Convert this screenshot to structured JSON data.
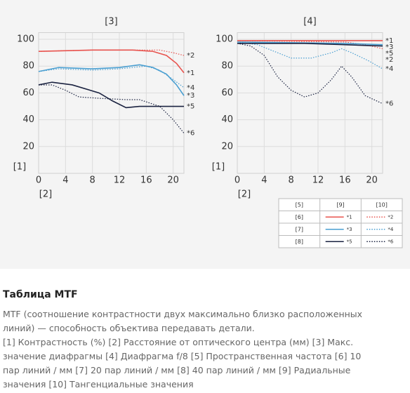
{
  "chart_data": [
    {
      "type": "line",
      "title": "[3]",
      "ylabel": "[1]",
      "xlabel": "[2]",
      "xlim": [
        0,
        21.6
      ],
      "ylim": [
        0,
        105
      ],
      "xticks": [
        0,
        4,
        8,
        12,
        16,
        20
      ],
      "yticks": [
        20,
        40,
        60,
        80,
        100
      ],
      "grid": true,
      "series": [
        {
          "name": "*1",
          "color": "#e8534e",
          "style": "solid",
          "x": [
            0,
            8,
            14,
            17,
            19,
            20.5,
            21.6
          ],
          "values": [
            91,
            92,
            92,
            91,
            88,
            82,
            75
          ]
        },
        {
          "name": "*2",
          "color": "#e8534e",
          "style": "dotted",
          "x": [
            0,
            8,
            14,
            16,
            18,
            20,
            21.6
          ],
          "values": [
            91,
            92,
            92,
            92,
            92,
            90,
            88
          ]
        },
        {
          "name": "*3",
          "color": "#4a9fd1",
          "style": "solid",
          "x": [
            0,
            3,
            8,
            12,
            15,
            17,
            19,
            20.5,
            21.6
          ],
          "values": [
            76,
            79,
            78,
            79,
            81,
            79,
            74,
            66,
            58
          ]
        },
        {
          "name": "*4",
          "color": "#4a9fd1",
          "style": "dotted",
          "x": [
            0,
            3,
            8,
            12,
            16,
            18,
            20,
            21.6
          ],
          "values": [
            76,
            78,
            77,
            78,
            80,
            77,
            70,
            64
          ]
        },
        {
          "name": "*5",
          "color": "#1a2240",
          "style": "solid",
          "x": [
            0,
            2,
            5,
            9,
            11,
            13,
            15,
            21.6
          ],
          "values": [
            66,
            68,
            66,
            60,
            54,
            49,
            50,
            50
          ]
        },
        {
          "name": "*6",
          "color": "#1a2240",
          "style": "dotted",
          "x": [
            0,
            2,
            4,
            6,
            9,
            13,
            15,
            18,
            20,
            21.6
          ],
          "values": [
            66,
            66,
            62,
            57,
            56,
            55,
            55,
            50,
            40,
            30
          ]
        }
      ]
    },
    {
      "type": "line",
      "title": "[4]",
      "ylabel": "[1]",
      "xlabel": "[2]",
      "xlim": [
        0,
        21.6
      ],
      "ylim": [
        0,
        105
      ],
      "xticks": [
        0,
        4,
        8,
        12,
        16,
        20
      ],
      "yticks": [
        20,
        40,
        60,
        80,
        100
      ],
      "grid": true,
      "series": [
        {
          "name": "*1",
          "color": "#e8534e",
          "style": "solid",
          "x": [
            0,
            21.6
          ],
          "values": [
            99,
            99
          ]
        },
        {
          "name": "*2",
          "color": "#e8534e",
          "style": "dotted",
          "x": [
            0,
            16,
            19,
            21.6
          ],
          "values": [
            99,
            98,
            96,
            93
          ]
        },
        {
          "name": "*3",
          "color": "#4a9fd1",
          "style": "solid",
          "x": [
            0,
            16,
            21.6
          ],
          "values": [
            98,
            97,
            96
          ]
        },
        {
          "name": "*4",
          "color": "#4a9fd1",
          "style": "dotted",
          "x": [
            0,
            3,
            6,
            8,
            11,
            14,
            15.5,
            17,
            19.5,
            21.6
          ],
          "values": [
            98,
            96,
            90,
            86,
            86,
            90,
            93,
            90,
            84,
            78
          ]
        },
        {
          "name": "*5",
          "color": "#1a2240",
          "style": "solid",
          "x": [
            0,
            10,
            16,
            21.6
          ],
          "values": [
            97,
            97,
            96,
            95
          ]
        },
        {
          "name": "*6",
          "color": "#1a2240",
          "style": "dotted",
          "x": [
            0,
            2,
            4,
            6,
            8,
            10,
            12,
            14,
            15.5,
            17,
            19,
            21.6
          ],
          "values": [
            97,
            95,
            88,
            72,
            62,
            57,
            60,
            70,
            80,
            72,
            58,
            52
          ]
        }
      ]
    }
  ],
  "legend_table": {
    "header": [
      "[5]",
      "[9]",
      "[10]"
    ],
    "rows": [
      "[6]",
      "[7]",
      "[8]"
    ]
  },
  "info": {
    "title": "Таблица MTF",
    "paragraphs": [
      "MTF (соотношение контрастности двух максимально близко расположенных линий) — способность объектива передавать детали.",
      "[1] Контрастность (%) [2] Расстояние от оптического центра (мм) [3] Макс. значение диафрагмы [4] Диафрагма f/8 [5] Пространственная частота [6] 10 пар линий / мм [7] 20 пар линий / мм [8] 40 пар линий / мм [9] Радиальные значения [10] Тангенциальные значения"
    ]
  }
}
